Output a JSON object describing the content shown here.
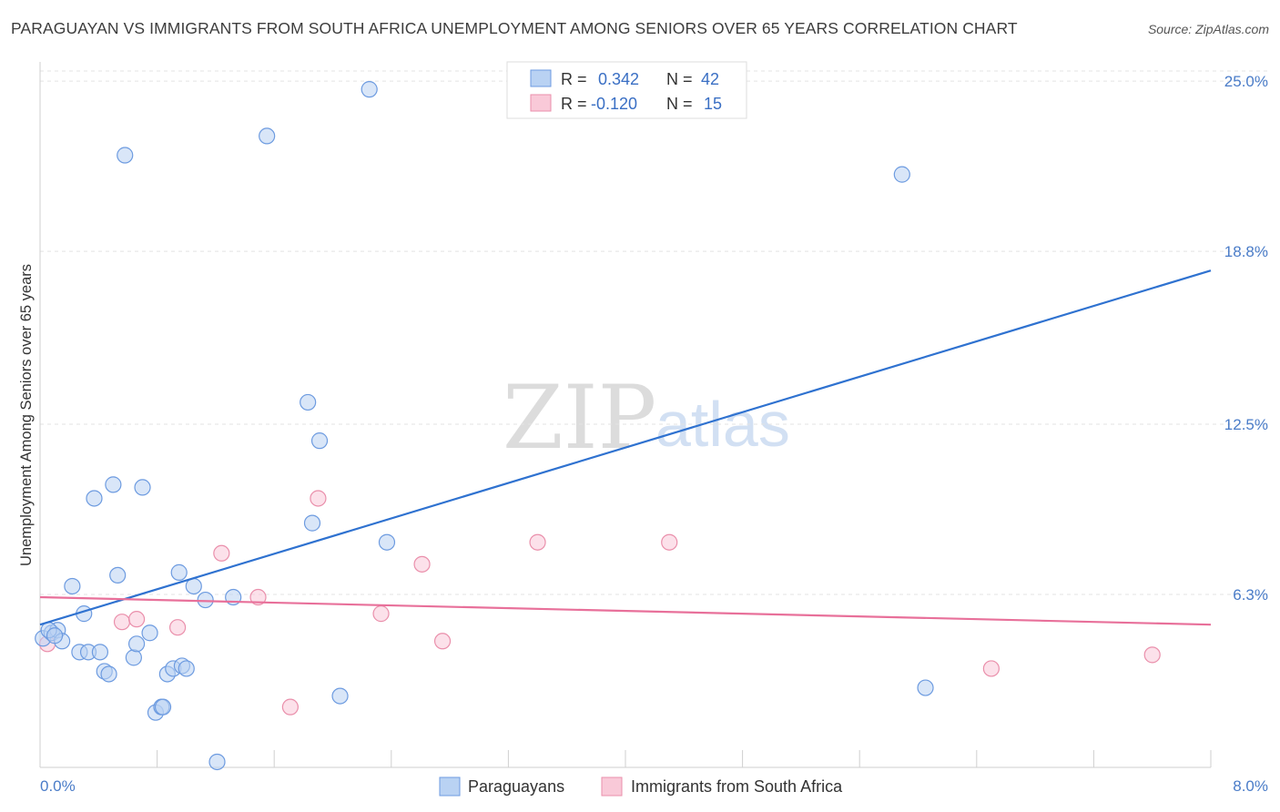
{
  "header": {
    "title": "PARAGUAYAN VS IMMIGRANTS FROM SOUTH AFRICA UNEMPLOYMENT AMONG SENIORS OVER 65 YEARS CORRELATION CHART",
    "source": "Source: ZipAtlas.com"
  },
  "watermark": {
    "zip": "ZIP",
    "atlas": "atlas"
  },
  "legend": {
    "row1": {
      "r_label": "R =",
      "r_value": "0.342",
      "n_label": "N =",
      "n_value": "42"
    },
    "row2": {
      "r_label": "R =",
      "r_value": "-0.120",
      "n_label": "N =",
      "n_value": "15"
    }
  },
  "bottom_legend": {
    "series1": "Paraguayans",
    "series2": "Immigrants from South Africa"
  },
  "colors": {
    "blue_fill": "#b9d2f3",
    "blue_stroke": "#6d9be0",
    "blue_line": "#2f72d0",
    "pink_fill": "#f9c9d8",
    "pink_stroke": "#ea8fab",
    "pink_line": "#e8709a",
    "tick_blue": "#4a7cc8",
    "grid": "#e3e3e3"
  },
  "chart_data": {
    "type": "scatter",
    "title": "PARAGUAYAN VS IMMIGRANTS FROM SOUTH AFRICA UNEMPLOYMENT AMONG SENIORS OVER 65 YEARS CORRELATION CHART",
    "xlabel": "",
    "ylabel": "Unemployment Among Seniors over 65 years",
    "xlim": [
      0,
      8
    ],
    "ylim": [
      0,
      25.6
    ],
    "x_tick_labels": [
      "0.0%",
      "8.0%"
    ],
    "y_ticks": [
      6.3,
      12.5,
      18.8,
      25.0
    ],
    "y_tick_labels": [
      "6.3%",
      "12.5%",
      "18.8%",
      "25.0%"
    ],
    "grid": true,
    "legend_position": "top-center",
    "series": [
      {
        "name": "Paraguayans",
        "r": 0.342,
        "n": 42,
        "trend": {
          "x": [
            0,
            8
          ],
          "y": [
            5.2,
            18.1
          ]
        },
        "points": [
          [
            0.02,
            4.7
          ],
          [
            0.08,
            4.9
          ],
          [
            0.12,
            5.0
          ],
          [
            0.15,
            4.6
          ],
          [
            0.22,
            6.6
          ],
          [
            0.27,
            4.2
          ],
          [
            0.3,
            5.6
          ],
          [
            0.33,
            4.2
          ],
          [
            0.37,
            9.8
          ],
          [
            0.41,
            4.2
          ],
          [
            0.44,
            3.5
          ],
          [
            0.47,
            3.4
          ],
          [
            0.5,
            10.3
          ],
          [
            0.53,
            7.0
          ],
          [
            0.58,
            22.3
          ],
          [
            0.64,
            4.0
          ],
          [
            0.66,
            4.5
          ],
          [
            0.7,
            10.2
          ],
          [
            0.75,
            4.9
          ],
          [
            0.79,
            2.0
          ],
          [
            0.83,
            2.2
          ],
          [
            0.84,
            2.2
          ],
          [
            0.87,
            3.4
          ],
          [
            0.91,
            3.6
          ],
          [
            0.95,
            7.1
          ],
          [
            0.97,
            3.7
          ],
          [
            1.0,
            3.6
          ],
          [
            1.05,
            6.6
          ],
          [
            1.13,
            6.1
          ],
          [
            1.21,
            0.2
          ],
          [
            1.32,
            6.2
          ],
          [
            1.55,
            23.0
          ],
          [
            1.83,
            13.3
          ],
          [
            1.86,
            8.9
          ],
          [
            1.91,
            11.9
          ],
          [
            2.25,
            24.7
          ],
          [
            2.37,
            8.2
          ],
          [
            2.05,
            2.6
          ],
          [
            5.89,
            21.6
          ],
          [
            6.05,
            2.9
          ],
          [
            0.06,
            5.0
          ],
          [
            0.1,
            4.8
          ]
        ]
      },
      {
        "name": "Immigrants from South Africa",
        "r": -0.12,
        "n": 15,
        "trend": {
          "x": [
            0,
            8
          ],
          "y": [
            6.2,
            5.2
          ]
        },
        "points": [
          [
            0.05,
            4.5
          ],
          [
            0.56,
            5.3
          ],
          [
            0.66,
            5.4
          ],
          [
            0.94,
            5.1
          ],
          [
            1.24,
            7.8
          ],
          [
            1.49,
            6.2
          ],
          [
            1.71,
            2.2
          ],
          [
            1.9,
            9.8
          ],
          [
            2.33,
            5.6
          ],
          [
            2.61,
            7.4
          ],
          [
            2.75,
            4.6
          ],
          [
            3.4,
            8.2
          ],
          [
            4.3,
            8.2
          ],
          [
            6.5,
            3.6
          ],
          [
            7.6,
            4.1
          ]
        ]
      }
    ]
  }
}
